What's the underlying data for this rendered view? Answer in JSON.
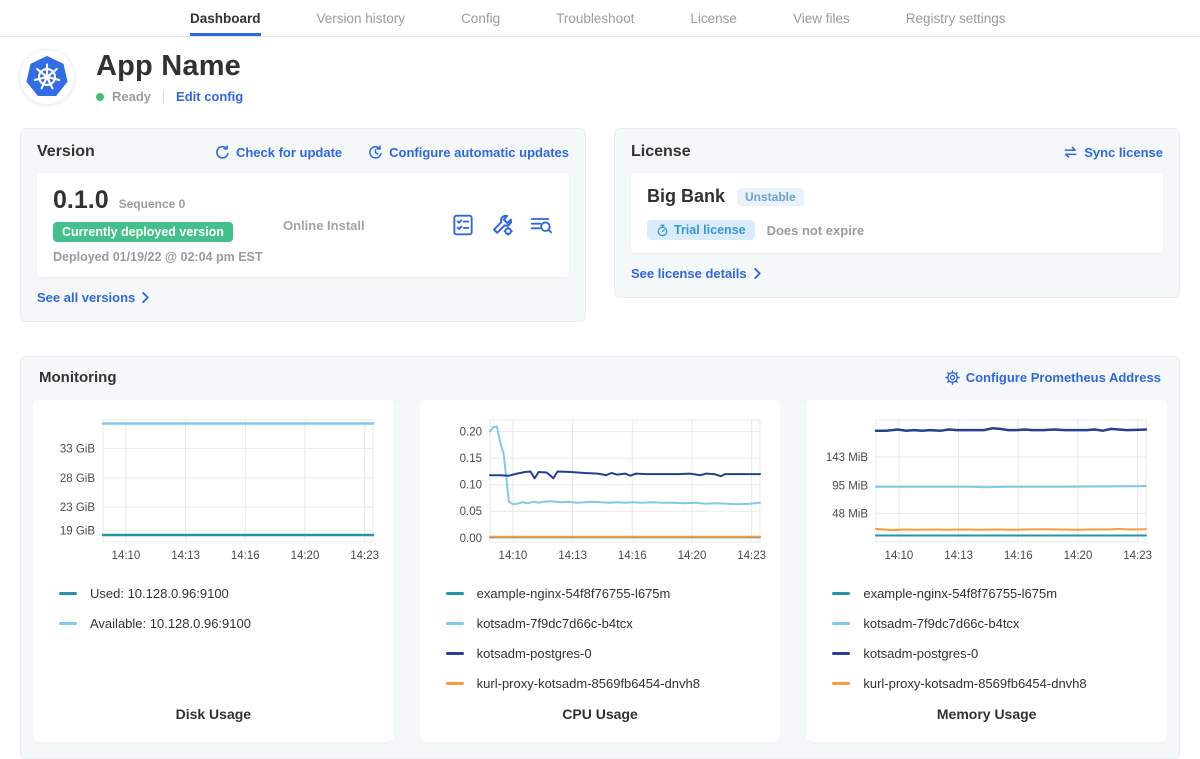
{
  "nav": {
    "tabs": [
      {
        "label": "Dashboard",
        "active": true
      },
      {
        "label": "Version history",
        "active": false
      },
      {
        "label": "Config",
        "active": false
      },
      {
        "label": "Troubleshoot",
        "active": false
      },
      {
        "label": "License",
        "active": false
      },
      {
        "label": "View files",
        "active": false
      },
      {
        "label": "Registry settings",
        "active": false
      }
    ]
  },
  "app": {
    "name": "App Name",
    "status": "Ready",
    "edit_config_label": "Edit config"
  },
  "version_card": {
    "title": "Version",
    "check_update_label": "Check for update",
    "auto_updates_label": "Configure automatic updates",
    "version_number": "0.1.0",
    "sequence": "Sequence 0",
    "deployed_badge": "Currently deployed version",
    "deployed_at": "Deployed 01/19/22 @ 02:04 pm EST",
    "install_type": "Online Install",
    "see_all_label": "See all versions"
  },
  "license_card": {
    "title": "License",
    "sync_label": "Sync license",
    "name": "Big Bank",
    "channel": "Unstable",
    "type_badge": "Trial license",
    "expiry": "Does not expire",
    "details_label": "See license details"
  },
  "monitoring": {
    "title": "Monitoring",
    "configure_label": "Configure Prometheus Address"
  },
  "colors": {
    "link_blue": "#3066e0",
    "active_underline": "#3066e0",
    "badge_green": "#44c08c",
    "ready_dot": "#44bb77",
    "series_teal": "#2196a8",
    "series_lightblue": "#7fc9ea",
    "series_navy": "#25408f",
    "series_orange": "#f99c3d",
    "grid": "#e8e8e8",
    "axis_text": "#4a4a4a",
    "card_bg": "#f5f8f9",
    "panel_bg": "#ffffff"
  },
  "chart_data": [
    {
      "type": "line",
      "title": "Disk Usage",
      "ylim": [
        17.0,
        37.9
      ],
      "y_ticks": [
        {
          "v": 19,
          "label": "19 GiB"
        },
        {
          "v": 23,
          "label": "23 GiB"
        },
        {
          "v": 28,
          "label": "28 GiB"
        },
        {
          "v": 33,
          "label": "33 GiB"
        }
      ],
      "x_ticks": [
        {
          "f": 0.085,
          "label": "14:10"
        },
        {
          "f": 0.306,
          "label": "14:13"
        },
        {
          "f": 0.527,
          "label": "14:16"
        },
        {
          "f": 0.748,
          "label": "14:20"
        },
        {
          "f": 0.969,
          "label": "14:23"
        }
      ],
      "series": [
        {
          "name": "Used: 10.128.0.96:9100",
          "color": "#2196a8",
          "width": 2.5,
          "points": [
            [
              0,
              18.2
            ],
            [
              1,
              18.2
            ]
          ]
        },
        {
          "name": "Available: 10.128.0.96:9100",
          "color": "#7fc9ea",
          "width": 2.5,
          "points": [
            [
              0,
              37.3
            ],
            [
              1,
              37.3
            ]
          ]
        }
      ]
    },
    {
      "type": "line",
      "title": "CPU Usage",
      "ylim": [
        -0.008,
        0.222
      ],
      "y_ticks": [
        {
          "v": 0,
          "label": "0.00"
        },
        {
          "v": 0.05,
          "label": "0.05"
        },
        {
          "v": 0.1,
          "label": "0.10"
        },
        {
          "v": 0.15,
          "label": "0.15"
        },
        {
          "v": 0.2,
          "label": "0.20"
        }
      ],
      "x_ticks": [
        {
          "f": 0.085,
          "label": "14:10"
        },
        {
          "f": 0.306,
          "label": "14:13"
        },
        {
          "f": 0.527,
          "label": "14:16"
        },
        {
          "f": 0.748,
          "label": "14:20"
        },
        {
          "f": 0.969,
          "label": "14:23"
        }
      ],
      "series": [
        {
          "name": "example-nginx-54f8f76755-l675m",
          "color": "#2196a8",
          "width": 2,
          "points": [
            [
              0,
              0.001
            ],
            [
              1,
              0.001
            ]
          ]
        },
        {
          "name": "kotsadm-7f9dc7d66c-b4tcx",
          "color": "#7fc9ea",
          "width": 2,
          "points": [
            [
              0,
              0.2
            ],
            [
              0.012,
              0.208
            ],
            [
              0.025,
              0.21
            ],
            [
              0.04,
              0.175
            ],
            [
              0.05,
              0.16
            ],
            [
              0.06,
              0.115
            ],
            [
              0.07,
              0.068
            ],
            [
              0.085,
              0.063
            ],
            [
              0.1,
              0.064
            ],
            [
              0.12,
              0.067
            ],
            [
              0.14,
              0.065
            ],
            [
              0.16,
              0.068
            ],
            [
              0.18,
              0.066
            ],
            [
              0.2,
              0.068
            ],
            [
              0.23,
              0.069
            ],
            [
              0.26,
              0.067
            ],
            [
              0.29,
              0.068
            ],
            [
              0.32,
              0.066
            ],
            [
              0.35,
              0.067
            ],
            [
              0.38,
              0.068
            ],
            [
              0.41,
              0.067
            ],
            [
              0.44,
              0.066
            ],
            [
              0.47,
              0.067
            ],
            [
              0.5,
              0.066
            ],
            [
              0.53,
              0.067
            ],
            [
              0.56,
              0.066
            ],
            [
              0.6,
              0.067
            ],
            [
              0.64,
              0.066
            ],
            [
              0.68,
              0.066
            ],
            [
              0.72,
              0.065
            ],
            [
              0.76,
              0.066
            ],
            [
              0.8,
              0.064
            ],
            [
              0.84,
              0.065
            ],
            [
              0.88,
              0.064
            ],
            [
              0.92,
              0.063
            ],
            [
              0.96,
              0.064
            ],
            [
              1,
              0.066
            ]
          ]
        },
        {
          "name": "kotsadm-postgres-0",
          "color": "#25408f",
          "width": 2,
          "points": [
            [
              0,
              0.118
            ],
            [
              0.04,
              0.118
            ],
            [
              0.07,
              0.117
            ],
            [
              0.1,
              0.121
            ],
            [
              0.13,
              0.124
            ],
            [
              0.15,
              0.125
            ],
            [
              0.165,
              0.112
            ],
            [
              0.18,
              0.124
            ],
            [
              0.21,
              0.123
            ],
            [
              0.235,
              0.112
            ],
            [
              0.25,
              0.125
            ],
            [
              0.3,
              0.124
            ],
            [
              0.35,
              0.122
            ],
            [
              0.4,
              0.121
            ],
            [
              0.43,
              0.118
            ],
            [
              0.45,
              0.122
            ],
            [
              0.47,
              0.119
            ],
            [
              0.5,
              0.121
            ],
            [
              0.52,
              0.117
            ],
            [
              0.54,
              0.121
            ],
            [
              0.58,
              0.12
            ],
            [
              0.62,
              0.12
            ],
            [
              0.66,
              0.12
            ],
            [
              0.7,
              0.12
            ],
            [
              0.74,
              0.121
            ],
            [
              0.78,
              0.118
            ],
            [
              0.8,
              0.121
            ],
            [
              0.83,
              0.12
            ],
            [
              0.855,
              0.116
            ],
            [
              0.87,
              0.12
            ],
            [
              0.9,
              0.12
            ],
            [
              0.94,
              0.12
            ],
            [
              1,
              0.12
            ]
          ]
        },
        {
          "name": "kurl-proxy-kotsadm-8569fb6454-dnvh8",
          "color": "#f99c3d",
          "width": 2,
          "points": [
            [
              0,
              0.002
            ],
            [
              1,
              0.002
            ]
          ]
        }
      ]
    },
    {
      "type": "line",
      "title": "Memory Usage",
      "ylim": [
        0,
        205
      ],
      "y_ticks": [
        {
          "v": 48,
          "label": "48 MiB"
        },
        {
          "v": 95,
          "label": "95 MiB"
        },
        {
          "v": 143,
          "label": "143 MiB"
        }
      ],
      "x_ticks": [
        {
          "f": 0.085,
          "label": "14:10"
        },
        {
          "f": 0.306,
          "label": "14:13"
        },
        {
          "f": 0.527,
          "label": "14:16"
        },
        {
          "f": 0.748,
          "label": "14:20"
        },
        {
          "f": 0.969,
          "label": "14:23"
        }
      ],
      "series": [
        {
          "name": "example-nginx-54f8f76755-l675m",
          "color": "#2196a8",
          "width": 2,
          "points": [
            [
              0,
              11
            ],
            [
              1,
              11
            ]
          ]
        },
        {
          "name": "kotsadm-7f9dc7d66c-b4tcx",
          "color": "#7fc9ea",
          "width": 2,
          "points": [
            [
              0,
              93
            ],
            [
              0.2,
              93
            ],
            [
              0.35,
              93
            ],
            [
              0.4,
              92
            ],
            [
              0.5,
              93
            ],
            [
              0.7,
              93
            ],
            [
              1,
              94
            ]
          ]
        },
        {
          "name": "kotsadm-postgres-0",
          "color": "#25408f",
          "width": 2.5,
          "points": [
            [
              0,
              187
            ],
            [
              0.04,
              187
            ],
            [
              0.08,
              189
            ],
            [
              0.11,
              187
            ],
            [
              0.14,
              188
            ],
            [
              0.17,
              187
            ],
            [
              0.2,
              188
            ],
            [
              0.24,
              187
            ],
            [
              0.27,
              189
            ],
            [
              0.3,
              188
            ],
            [
              0.33,
              188
            ],
            [
              0.36,
              188
            ],
            [
              0.4,
              188
            ],
            [
              0.43,
              191
            ],
            [
              0.46,
              190
            ],
            [
              0.49,
              188
            ],
            [
              0.52,
              188
            ],
            [
              0.55,
              189
            ],
            [
              0.58,
              188
            ],
            [
              0.62,
              188
            ],
            [
              0.66,
              189
            ],
            [
              0.7,
              188
            ],
            [
              0.74,
              188
            ],
            [
              0.78,
              188
            ],
            [
              0.81,
              189
            ],
            [
              0.84,
              187
            ],
            [
              0.87,
              190
            ],
            [
              0.9,
              189
            ],
            [
              0.93,
              188
            ],
            [
              1,
              189
            ]
          ]
        },
        {
          "name": "kurl-proxy-kotsadm-8569fb6454-dnvh8",
          "color": "#f99c3d",
          "width": 2,
          "points": [
            [
              0,
              22
            ],
            [
              0.03,
              21
            ],
            [
              0.06,
              20
            ],
            [
              0.1,
              21
            ],
            [
              0.15,
              20.5
            ],
            [
              0.2,
              21
            ],
            [
              0.26,
              20.5
            ],
            [
              0.32,
              21
            ],
            [
              0.38,
              20.5
            ],
            [
              0.44,
              21
            ],
            [
              0.5,
              20.5
            ],
            [
              0.56,
              21
            ],
            [
              0.62,
              21.5
            ],
            [
              0.68,
              21
            ],
            [
              0.74,
              20.5
            ],
            [
              0.8,
              21
            ],
            [
              0.86,
              21
            ],
            [
              0.9,
              22
            ],
            [
              0.94,
              21
            ],
            [
              1,
              21.5
            ]
          ]
        }
      ]
    }
  ]
}
